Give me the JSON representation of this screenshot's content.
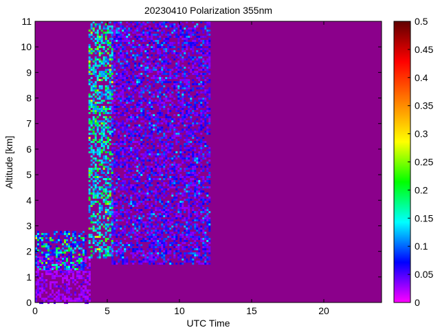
{
  "chart_data": {
    "type": "heatmap",
    "title": "20230410 Polarization 355nm",
    "xlabel": "UTC Time",
    "ylabel": "Altitude [km]",
    "xlim": [
      0,
      24
    ],
    "ylim": [
      0,
      11
    ],
    "xticks": [
      0,
      5,
      10,
      15,
      20
    ],
    "yticks": [
      0,
      1,
      2,
      3,
      4,
      5,
      6,
      7,
      8,
      9,
      10,
      11
    ],
    "colorbar": {
      "range": [
        0,
        0.5
      ],
      "ticks": [
        "0",
        "0.05",
        "0.1",
        "0.15",
        "0.2",
        "0.25",
        "0.3",
        "0.35",
        "0.4",
        "0.45",
        "0.5"
      ],
      "colormap": [
        "#ff00ff",
        "#0000ff",
        "#00ffff",
        "#00ff00",
        "#ffff00",
        "#ff8000",
        "#ff0000",
        "#600000"
      ],
      "placement": "right"
    },
    "background_color": "#8b008b",
    "regions": [
      {
        "description": "dense aerosol near surface",
        "x": [
          0,
          3.8
        ],
        "y": [
          0,
          1.8
        ],
        "value_range": [
          0.02,
          0.06
        ]
      },
      {
        "description": "high depolarization layer",
        "x": [
          0,
          3.5
        ],
        "y": [
          1.3,
          2.8
        ],
        "value_range": [
          0.05,
          0.3
        ]
      },
      {
        "description": "noisy high depolarization streaks",
        "x": [
          3.7,
          5.3
        ],
        "y": [
          1.8,
          11
        ],
        "value_range": [
          0.1,
          0.3
        ]
      },
      {
        "description": "noisy signal decaying with time",
        "x": [
          5.3,
          12.1
        ],
        "y": [
          1.5,
          11
        ],
        "value_range": [
          0.03,
          0.15
        ]
      },
      {
        "description": "no data",
        "x": [
          12.1,
          24
        ],
        "y": [
          0,
          11
        ],
        "value": 0
      }
    ]
  }
}
